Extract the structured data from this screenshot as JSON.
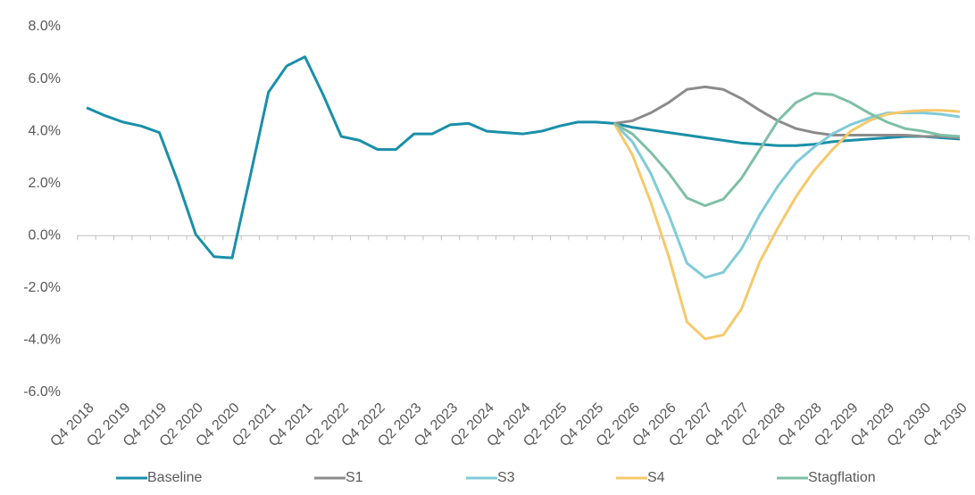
{
  "chart_data": {
    "type": "line",
    "categories": [
      "Q4 2018",
      null,
      "Q2 2019",
      null,
      "Q4 2019",
      null,
      "Q2 2020",
      null,
      "Q4 2020",
      null,
      "Q2 2021",
      null,
      "Q4 2021",
      null,
      "Q2 2022",
      null,
      "Q4 2022",
      null,
      "Q2 2023",
      null,
      "Q4 2023",
      null,
      "Q2 2024",
      null,
      "Q4 2024",
      null,
      "Q2 2025",
      null,
      "Q4 2025",
      null,
      "Q2 2026",
      null,
      "Q4 2026",
      null,
      "Q2 2027",
      null,
      "Q4 2027",
      null,
      "Q2 2028",
      null,
      "Q4 2028",
      null,
      "Q2 2029",
      null,
      "Q4 2029",
      null,
      "Q2 2030",
      null,
      "Q4 2030"
    ],
    "series": [
      {
        "name": "Baseline",
        "color": "#1a8fa8",
        "values": [
          4.9,
          4.6,
          4.35,
          4.2,
          3.95,
          2.1,
          0.05,
          -0.8,
          -0.85,
          2.3,
          5.5,
          6.5,
          6.85,
          5.4,
          3.8,
          3.65,
          3.3,
          3.3,
          3.9,
          3.9,
          4.25,
          4.3,
          4.0,
          3.95,
          3.9,
          4.0,
          4.2,
          4.35,
          4.35,
          4.3,
          4.15,
          4.05,
          3.95,
          3.85,
          3.75,
          3.65,
          3.55,
          3.5,
          3.45,
          3.45,
          3.5,
          3.6,
          3.65,
          3.7,
          3.75,
          3.8,
          3.8,
          3.75,
          3.7
        ]
      },
      {
        "name": "S1",
        "color": "#8c8c8c",
        "values": [
          null,
          null,
          null,
          null,
          null,
          null,
          null,
          null,
          null,
          null,
          null,
          null,
          null,
          null,
          null,
          null,
          null,
          null,
          null,
          null,
          null,
          null,
          null,
          null,
          null,
          null,
          null,
          null,
          null,
          4.3,
          4.4,
          4.7,
          5.1,
          5.6,
          5.7,
          5.6,
          5.25,
          4.8,
          4.4,
          4.1,
          3.95,
          3.85,
          3.85,
          3.85,
          3.85,
          3.85,
          3.8,
          3.8,
          3.75
        ]
      },
      {
        "name": "S3",
        "color": "#80cbd8",
        "values": [
          null,
          null,
          null,
          null,
          null,
          null,
          null,
          null,
          null,
          null,
          null,
          null,
          null,
          null,
          null,
          null,
          null,
          null,
          null,
          null,
          null,
          null,
          null,
          null,
          null,
          null,
          null,
          null,
          null,
          4.3,
          3.6,
          2.4,
          0.8,
          -1.05,
          -1.6,
          -1.4,
          -0.5,
          0.8,
          1.9,
          2.8,
          3.4,
          3.9,
          4.25,
          4.5,
          4.7,
          4.7,
          4.7,
          4.65,
          4.55
        ]
      },
      {
        "name": "S4",
        "color": "#f5c96b",
        "values": [
          null,
          null,
          null,
          null,
          null,
          null,
          null,
          null,
          null,
          null,
          null,
          null,
          null,
          null,
          null,
          null,
          null,
          null,
          null,
          null,
          null,
          null,
          null,
          null,
          null,
          null,
          null,
          null,
          null,
          4.3,
          3.1,
          1.3,
          -0.8,
          -3.3,
          -3.95,
          -3.8,
          -2.8,
          -1.0,
          0.3,
          1.5,
          2.5,
          3.3,
          4.0,
          4.4,
          4.65,
          4.75,
          4.8,
          4.8,
          4.75
        ]
      },
      {
        "name": "Stagflation",
        "color": "#7fbfa6",
        "values": [
          null,
          null,
          null,
          null,
          null,
          null,
          null,
          null,
          null,
          null,
          null,
          null,
          null,
          null,
          null,
          null,
          null,
          null,
          null,
          null,
          null,
          null,
          null,
          null,
          null,
          null,
          null,
          null,
          null,
          4.3,
          3.9,
          3.2,
          2.4,
          1.45,
          1.15,
          1.4,
          2.2,
          3.3,
          4.4,
          5.1,
          5.45,
          5.4,
          5.1,
          4.7,
          4.35,
          4.1,
          4.0,
          3.85,
          3.8
        ]
      }
    ],
    "ylim": [
      -6,
      8
    ],
    "yticks": [
      {
        "value": -6,
        "label": "-6.0%"
      },
      {
        "value": -4,
        "label": "-4.0%"
      },
      {
        "value": -2,
        "label": "-2.0%"
      },
      {
        "value": 0,
        "label": "0.0%"
      },
      {
        "value": 2,
        "label": "2.0%"
      },
      {
        "value": 4,
        "label": "4.0%"
      },
      {
        "value": 6,
        "label": "6.0%"
      },
      {
        "value": 8,
        "label": "8.0%"
      }
    ],
    "legend": "bottom"
  }
}
